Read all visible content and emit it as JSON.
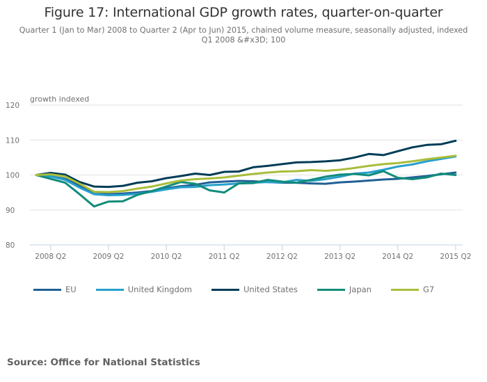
{
  "header": {
    "title": "Figure 17: International GDP growth rates, quarter-on-quarter",
    "subtitle": "Quarter 1 (Jan to Mar) 2008 to Quarter 2 (Apr to Jun) 2015, chained volume measure, seasonally adjusted, indexed Q1 2008 &#x3D; 100"
  },
  "footer": {
    "source": "Source: Office for National Statistics"
  },
  "chart_data": {
    "type": "line",
    "title": "Figure 17: International GDP growth rates, quarter-on-quarter",
    "ylabel": "growth indexed",
    "xlabel": "",
    "ylim": [
      80,
      120
    ],
    "yticks": [
      80,
      90,
      100,
      110,
      120
    ],
    "grid": true,
    "legend_position": "bottom",
    "x": [
      "2008 Q1",
      "2008 Q2",
      "2008 Q3",
      "2008 Q4",
      "2009 Q1",
      "2009 Q2",
      "2009 Q3",
      "2009 Q4",
      "2010 Q1",
      "2010 Q2",
      "2010 Q3",
      "2010 Q4",
      "2011 Q1",
      "2011 Q2",
      "2011 Q3",
      "2011 Q4",
      "2012 Q1",
      "2012 Q2",
      "2012 Q3",
      "2012 Q4",
      "2013 Q1",
      "2013 Q2",
      "2013 Q3",
      "2013 Q4",
      "2014 Q1",
      "2014 Q2",
      "2014 Q3",
      "2014 Q4",
      "2015 Q1",
      "2015 Q2"
    ],
    "xtick_labels": [
      "2008 Q2",
      "2009 Q2",
      "2010 Q2",
      "2011 Q2",
      "2012 Q2",
      "2013 Q2",
      "2014 Q2",
      "2015 Q2"
    ],
    "series": [
      {
        "name": "EU",
        "color": "#206095",
        "values": [
          100.0,
          99.6,
          98.9,
          97.0,
          94.6,
          94.5,
          94.7,
          95.0,
          95.4,
          96.2,
          96.8,
          97.2,
          97.9,
          98.1,
          98.3,
          98.2,
          98.0,
          97.8,
          97.8,
          97.6,
          97.5,
          97.9,
          98.1,
          98.4,
          98.7,
          98.9,
          99.3,
          99.7,
          100.2,
          100.7
        ]
      },
      {
        "name": "United Kingdom",
        "color": "#27A0CC",
        "values": [
          100.0,
          99.6,
          98.6,
          96.4,
          94.5,
          94.2,
          94.3,
          94.6,
          95.2,
          95.9,
          96.5,
          96.6,
          97.1,
          97.3,
          97.6,
          97.8,
          98.0,
          97.9,
          98.6,
          98.3,
          98.8,
          99.5,
          100.4,
          100.7,
          101.5,
          102.4,
          103.0,
          103.9,
          104.6,
          105.3
        ]
      },
      {
        "name": "United States",
        "color": "#003C57",
        "values": [
          100.0,
          100.6,
          100.1,
          98.0,
          96.7,
          96.6,
          96.9,
          97.8,
          98.2,
          99.1,
          99.7,
          100.4,
          100.0,
          100.9,
          101.0,
          102.2,
          102.6,
          103.1,
          103.6,
          103.7,
          103.9,
          104.2,
          105.0,
          106.0,
          105.7,
          106.8,
          107.9,
          108.6,
          108.8,
          109.8
        ]
      },
      {
        "name": "Japan",
        "color": "#118C7B",
        "values": [
          100.0,
          98.9,
          97.8,
          94.5,
          91.0,
          92.4,
          92.5,
          94.3,
          95.4,
          96.7,
          98.0,
          97.5,
          95.6,
          95.0,
          97.6,
          97.7,
          98.6,
          98.1,
          97.8,
          98.6,
          99.5,
          100.1,
          100.3,
          99.9,
          101.1,
          99.2,
          98.8,
          99.3,
          100.4,
          100.0
        ]
      },
      {
        "name": "G7",
        "color": "#A8BD3A",
        "values": [
          100.0,
          100.2,
          99.6,
          97.5,
          95.2,
          95.1,
          95.4,
          96.1,
          96.7,
          97.6,
          98.4,
          98.8,
          99.0,
          99.3,
          99.8,
          100.3,
          100.7,
          101.0,
          101.1,
          101.4,
          101.2,
          101.5,
          102.0,
          102.6,
          103.1,
          103.4,
          103.9,
          104.5,
          105.0,
          105.5
        ]
      }
    ]
  }
}
